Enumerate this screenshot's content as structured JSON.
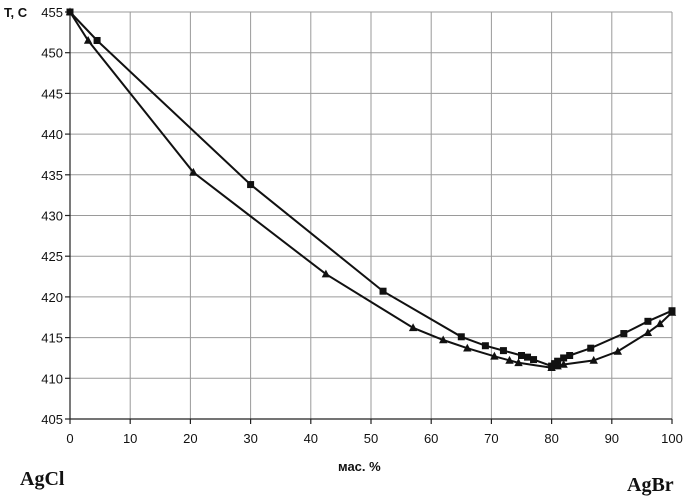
{
  "chart_data": {
    "type": "line",
    "ylabel": "T, C",
    "xlabel": "мас. %",
    "left_component": "AgCl",
    "right_component": "AgBr",
    "xlim": [
      0,
      100
    ],
    "ylim": [
      405,
      455
    ],
    "x_ticks": [
      0,
      10,
      20,
      30,
      40,
      50,
      60,
      70,
      80,
      90,
      100
    ],
    "y_ticks": [
      405,
      410,
      415,
      420,
      425,
      430,
      435,
      440,
      445,
      450,
      455
    ],
    "grid": true,
    "series": [
      {
        "marker": "square",
        "points": [
          [
            0,
            455
          ],
          [
            4.5,
            451.5
          ],
          [
            30,
            433.8
          ],
          [
            52,
            420.7
          ],
          [
            65,
            415.1
          ],
          [
            69,
            414
          ],
          [
            72,
            413.4
          ],
          [
            75,
            412.8
          ],
          [
            76,
            412.6
          ],
          [
            77,
            412.3
          ],
          [
            80,
            411.5
          ],
          [
            80.5,
            411.8
          ],
          [
            81,
            412.1
          ],
          [
            82,
            412.5
          ],
          [
            83,
            412.8
          ],
          [
            86.5,
            413.7
          ],
          [
            92,
            415.5
          ],
          [
            96,
            417
          ],
          [
            100,
            418.3
          ]
        ]
      },
      {
        "marker": "triangle",
        "points": [
          [
            0,
            455
          ],
          [
            3,
            451.5
          ],
          [
            20.5,
            435.3
          ],
          [
            42.5,
            422.8
          ],
          [
            57,
            416.2
          ],
          [
            62,
            414.7
          ],
          [
            66,
            413.7
          ],
          [
            70.5,
            412.7
          ],
          [
            73,
            412.2
          ],
          [
            74.5,
            411.9
          ],
          [
            80,
            411.3
          ],
          [
            81,
            411.5
          ],
          [
            82,
            411.7
          ],
          [
            87,
            412.2
          ],
          [
            91,
            413.3
          ],
          [
            96,
            415.6
          ],
          [
            98,
            416.7
          ],
          [
            100,
            418.1
          ]
        ]
      }
    ]
  }
}
